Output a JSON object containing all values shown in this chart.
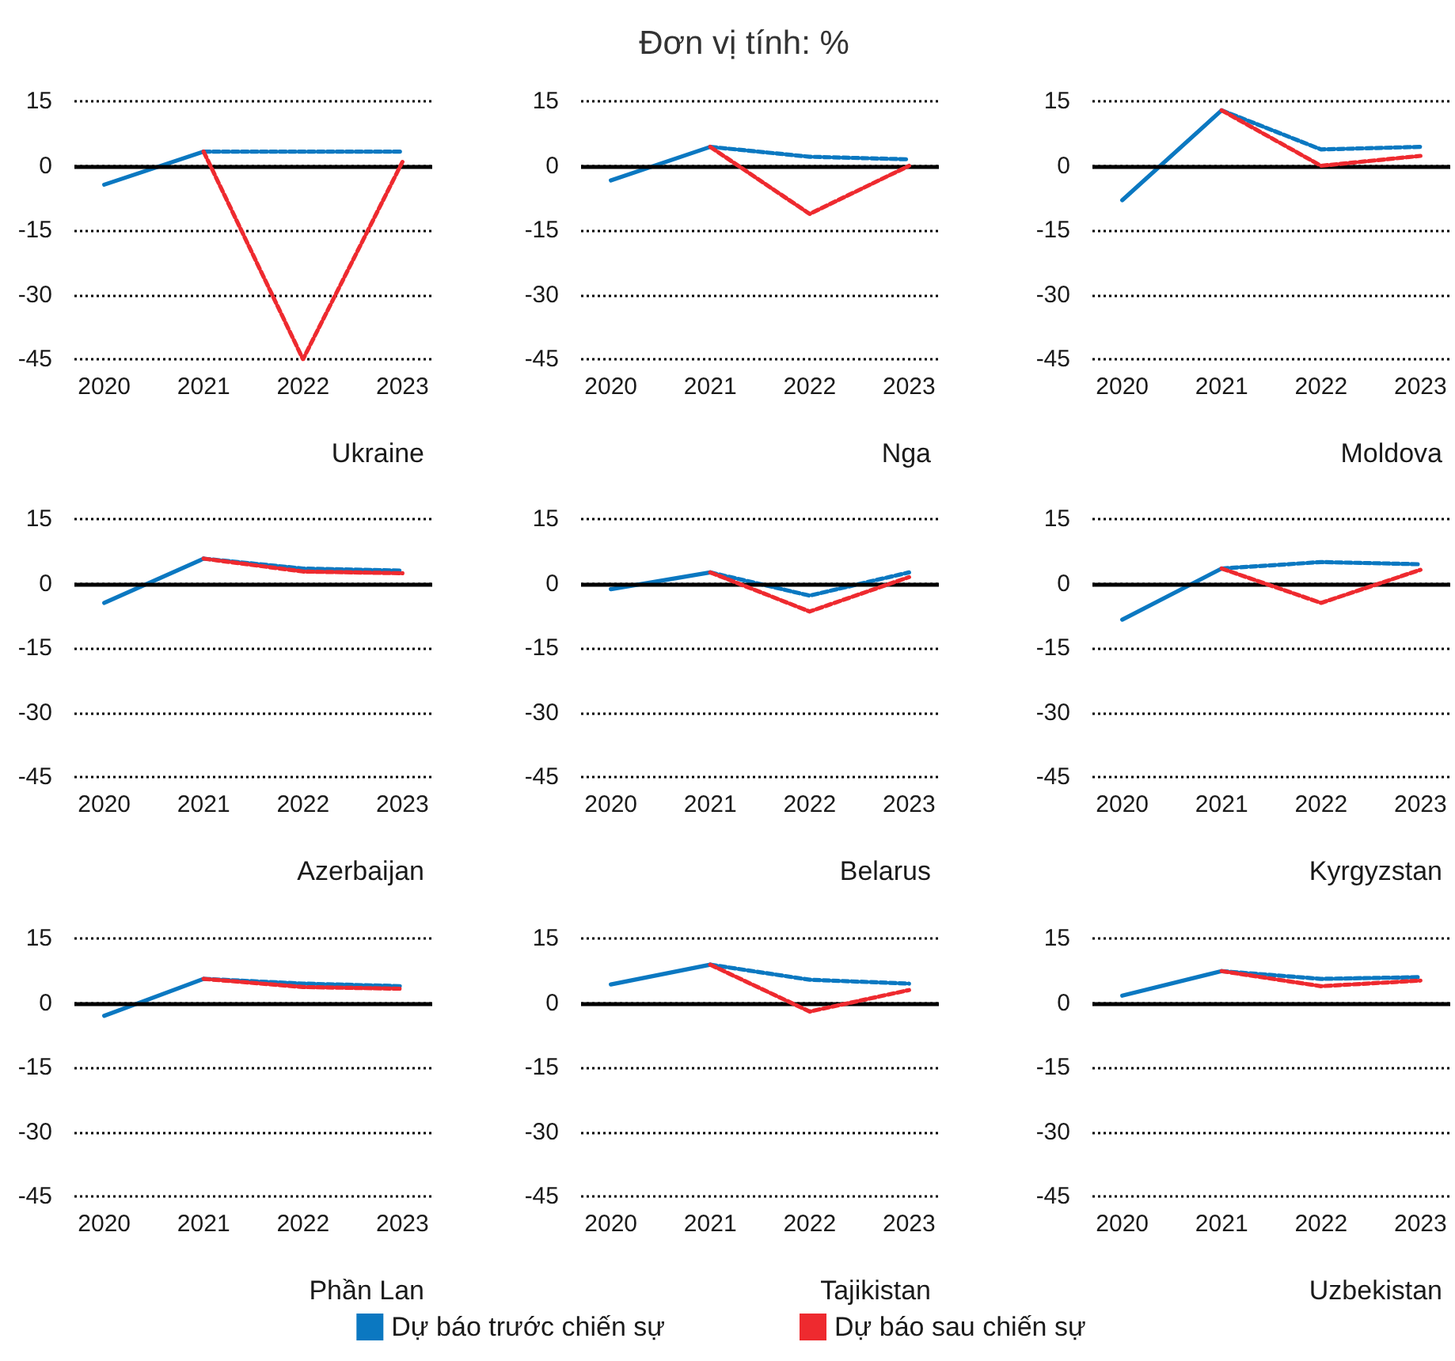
{
  "chart_data": [
    {
      "type": "line",
      "title": "Ukraine",
      "x": [
        2020,
        2021,
        2022,
        2023
      ],
      "xlim": [
        2019.7,
        2023.3
      ],
      "xticks": [
        2020,
        2021,
        2022,
        2023
      ],
      "ylim": [
        -45,
        15
      ],
      "yticks": [
        -45,
        -30,
        -15,
        0,
        15
      ],
      "grid": "y",
      "ref_lines": [
        {
          "axis": "y",
          "value": 0,
          "color": "#000000",
          "line_style": "solid"
        }
      ],
      "series": [
        {
          "color": "#0b78c1",
          "line_style": "solid",
          "values": [
            -4.4,
            3.3,
            null,
            null
          ]
        },
        {
          "color": "#0b78c1",
          "line_style": "dashed",
          "values": [
            null,
            3.3,
            3.3,
            3.3
          ]
        },
        {
          "color": "#ee2a2f",
          "line_style": "dashed",
          "values": [
            null,
            3.3,
            -45,
            0.9
          ]
        }
      ]
    },
    {
      "type": "line",
      "title": "Nga",
      "subtitle": "Đơn vị tính: %",
      "x": [
        2020,
        2021,
        2022,
        2023
      ],
      "xlim": [
        2019.7,
        2023.3
      ],
      "xticks": [
        2020,
        2021,
        2022,
        2023
      ],
      "ylim": [
        -45,
        15
      ],
      "yticks": [
        -45,
        -30,
        -15,
        0,
        15
      ],
      "grid": "y",
      "ref_lines": [
        {
          "axis": "y",
          "value": 0,
          "color": "#000000",
          "line_style": "solid"
        }
      ],
      "series": [
        {
          "color": "#0b78c1",
          "line_style": "solid",
          "values": [
            -3.4,
            4.4,
            null,
            null
          ]
        },
        {
          "color": "#0b78c1",
          "line_style": "dashed",
          "values": [
            null,
            4.4,
            2.1,
            1.5
          ]
        },
        {
          "color": "#ee2a2f",
          "line_style": "dashed",
          "values": [
            null,
            4.4,
            -11.2,
            0
          ]
        }
      ]
    },
    {
      "type": "line",
      "title": "Moldova",
      "x": [
        2020,
        2021,
        2022,
        2023
      ],
      "xlim": [
        2019.7,
        2023.3
      ],
      "xticks": [
        2020,
        2021,
        2022,
        2023
      ],
      "ylim": [
        -45,
        15
      ],
      "yticks": [
        -45,
        -30,
        -15,
        0,
        15
      ],
      "grid": "y",
      "ref_lines": [
        {
          "axis": "y",
          "value": 0,
          "color": "#000000",
          "line_style": "solid"
        }
      ],
      "series": [
        {
          "color": "#0b78c1",
          "line_style": "solid",
          "values": [
            -8,
            12.9,
            null,
            null
          ]
        },
        {
          "color": "#0b78c1",
          "line_style": "dashed",
          "values": [
            null,
            12.9,
            3.8,
            4.4
          ]
        },
        {
          "color": "#ee2a2f",
          "line_style": "dashed",
          "values": [
            null,
            12.9,
            0,
            2.3
          ]
        }
      ]
    },
    {
      "type": "line",
      "title": "Azerbaijan",
      "x": [
        2020,
        2021,
        2022,
        2023
      ],
      "xlim": [
        2019.7,
        2023.3
      ],
      "xticks": [
        2020,
        2021,
        2022,
        2023
      ],
      "ylim": [
        -45,
        15
      ],
      "yticks": [
        -45,
        -30,
        -15,
        0,
        15
      ],
      "grid": "y",
      "ref_lines": [
        {
          "axis": "y",
          "value": 0,
          "color": "#000000",
          "line_style": "solid"
        }
      ],
      "series": [
        {
          "color": "#0b78c1",
          "line_style": "solid",
          "values": [
            -4.5,
            5.8,
            null,
            null
          ]
        },
        {
          "color": "#0b78c1",
          "line_style": "dashed",
          "values": [
            null,
            5.8,
            3.5,
            3.0
          ]
        },
        {
          "color": "#ee2a2f",
          "line_style": "dashed",
          "values": [
            null,
            5.8,
            2.8,
            2.4
          ]
        }
      ]
    },
    {
      "type": "line",
      "title": "Belarus",
      "x": [
        2020,
        2021,
        2022,
        2023
      ],
      "xlim": [
        2019.7,
        2023.3
      ],
      "xticks": [
        2020,
        2021,
        2022,
        2023
      ],
      "ylim": [
        -45,
        15
      ],
      "yticks": [
        -45,
        -30,
        -15,
        0,
        15
      ],
      "grid": "y",
      "ref_lines": [
        {
          "axis": "y",
          "value": 0,
          "color": "#000000",
          "line_style": "solid"
        }
      ],
      "series": [
        {
          "color": "#0b78c1",
          "line_style": "solid",
          "values": [
            -1.3,
            2.6,
            null,
            null
          ]
        },
        {
          "color": "#0b78c1",
          "line_style": "dashed",
          "values": [
            null,
            2.6,
            -2.8,
            2.6
          ]
        },
        {
          "color": "#ee2a2f",
          "line_style": "dashed",
          "values": [
            null,
            2.6,
            -6.5,
            1.5
          ]
        }
      ]
    },
    {
      "type": "line",
      "title": "Kyrgyzstan",
      "x": [
        2020,
        2021,
        2022,
        2023
      ],
      "xlim": [
        2019.7,
        2023.3
      ],
      "xticks": [
        2020,
        2021,
        2022,
        2023
      ],
      "ylim": [
        -45,
        15
      ],
      "yticks": [
        -45,
        -30,
        -15,
        0,
        15
      ],
      "grid": "y",
      "ref_lines": [
        {
          "axis": "y",
          "value": 0,
          "color": "#000000",
          "line_style": "solid"
        }
      ],
      "series": [
        {
          "color": "#0b78c1",
          "line_style": "solid",
          "values": [
            -8.4,
            3.5,
            null,
            null
          ]
        },
        {
          "color": "#0b78c1",
          "line_style": "dashed",
          "values": [
            null,
            3.5,
            5.0,
            4.5
          ]
        },
        {
          "color": "#ee2a2f",
          "line_style": "dashed",
          "values": [
            null,
            3.5,
            -4.5,
            3.2
          ]
        }
      ]
    },
    {
      "type": "line",
      "title": "Phần Lan",
      "x": [
        2020,
        2021,
        2022,
        2023
      ],
      "xlim": [
        2019.7,
        2023.3
      ],
      "xticks": [
        2020,
        2021,
        2022,
        2023
      ],
      "ylim": [
        -45,
        15
      ],
      "yticks": [
        -45,
        -30,
        -15,
        0,
        15
      ],
      "grid": "y",
      "ref_lines": [
        {
          "axis": "y",
          "value": 0,
          "color": "#000000",
          "line_style": "solid"
        }
      ],
      "series": [
        {
          "color": "#0b78c1",
          "line_style": "solid",
          "values": [
            -3.0,
            5.6,
            null,
            null
          ]
        },
        {
          "color": "#0b78c1",
          "line_style": "dashed",
          "values": [
            null,
            5.6,
            4.5,
            3.9
          ]
        },
        {
          "color": "#ee2a2f",
          "line_style": "dashed",
          "values": [
            null,
            5.6,
            3.7,
            3.3
          ]
        }
      ]
    },
    {
      "type": "line",
      "title": "Tajikistan",
      "legend": "bottom",
      "x": [
        2020,
        2021,
        2022,
        2023
      ],
      "xlim": [
        2019.7,
        2023.3
      ],
      "xticks": [
        2020,
        2021,
        2022,
        2023
      ],
      "ylim": [
        -45,
        15
      ],
      "yticks": [
        -45,
        -30,
        -15,
        0,
        15
      ],
      "grid": "y",
      "ref_lines": [
        {
          "axis": "y",
          "value": 0,
          "color": "#000000",
          "line_style": "solid"
        }
      ],
      "series": [
        {
          "color": "#0b78c1",
          "line_style": "solid",
          "values": [
            4.3,
            8.9,
            null,
            null
          ]
        },
        {
          "name": "Dự báo trước chiến sự",
          "color": "#0b78c1",
          "line_style": "dashed",
          "values": [
            null,
            8.9,
            5.4,
            4.5
          ]
        },
        {
          "name": "Dự báo sau chiến sự",
          "color": "#ee2a2f",
          "line_style": "dashed",
          "values": [
            null,
            8.9,
            -2.0,
            3.0
          ]
        }
      ]
    },
    {
      "type": "line",
      "title": "Uzbekistan",
      "x": [
        2020,
        2021,
        2022,
        2023
      ],
      "xlim": [
        2019.7,
        2023.3
      ],
      "xticks": [
        2020,
        2021,
        2022,
        2023
      ],
      "ylim": [
        -45,
        15
      ],
      "yticks": [
        -45,
        -30,
        -15,
        0,
        15
      ],
      "grid": "y",
      "ref_lines": [
        {
          "axis": "y",
          "value": 0,
          "color": "#000000",
          "line_style": "solid"
        }
      ],
      "series": [
        {
          "color": "#0b78c1",
          "line_style": "solid",
          "values": [
            1.7,
            7.4,
            null,
            null
          ]
        },
        {
          "color": "#0b78c1",
          "line_style": "dashed",
          "values": [
            null,
            7.4,
            5.6,
            6.0
          ]
        },
        {
          "color": "#ee2a2f",
          "line_style": "dashed",
          "values": [
            null,
            7.4,
            3.9,
            5.2
          ]
        }
      ]
    }
  ]
}
